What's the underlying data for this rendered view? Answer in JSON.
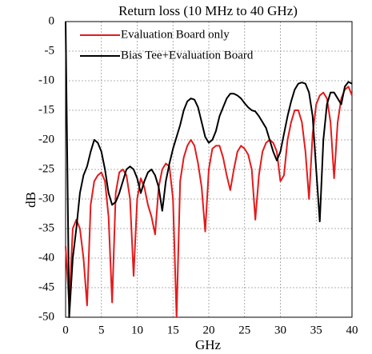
{
  "chart_data": {
    "type": "line",
    "title": "Return loss (10 MHz to 40 GHz)",
    "x_label": "GHz",
    "y_label": "dB",
    "x": [
      0,
      0.5,
      1,
      1.5,
      2,
      2.5,
      3,
      3.5,
      4,
      4.5,
      5,
      5.5,
      6,
      6.5,
      7,
      7.5,
      8,
      8.5,
      9,
      9.5,
      10,
      10.5,
      11,
      11.5,
      12,
      12.5,
      13,
      13.5,
      14,
      14.5,
      15,
      15.5,
      16,
      16.5,
      17,
      17.5,
      18,
      18.5,
      19,
      19.5,
      20,
      20.5,
      21,
      21.5,
      22,
      22.5,
      23,
      23.5,
      24,
      24.5,
      25,
      25.5,
      26,
      26.5,
      27,
      27.5,
      28,
      28.5,
      29,
      29.5,
      30,
      30.5,
      31,
      31.5,
      32,
      32.5,
      33,
      33.5,
      34,
      34.5,
      35,
      35.5,
      36,
      36.5,
      37,
      37.5,
      38,
      38.5,
      39,
      39.5,
      40
    ],
    "series": [
      {
        "name": "Evaluation Board only",
        "color": "#e41a1c",
        "values": [
          -38,
          -48,
          -35,
          -33.5,
          -35,
          -40,
          -48,
          -31,
          -27,
          -26,
          -25.5,
          -27,
          -33,
          -47.5,
          -29,
          -25.5,
          -25,
          -26,
          -30,
          -43,
          -30,
          -26.5,
          -28,
          -31,
          -33,
          -36,
          -28,
          -25,
          -24,
          -24.5,
          -30,
          -50,
          -27,
          -23,
          -21,
          -20,
          -21,
          -24,
          -28,
          -35.5,
          -25,
          -21.5,
          -21,
          -21,
          -23,
          -26,
          -28.5,
          -25,
          -22,
          -21,
          -21.5,
          -22.5,
          -25,
          -33.5,
          -26,
          -22,
          -20.5,
          -20,
          -20.5,
          -22,
          -27,
          -26,
          -20,
          -17,
          -15,
          -15,
          -17,
          -22,
          -30,
          -19,
          -14,
          -12.5,
          -12,
          -13,
          -17,
          -26.5,
          -17,
          -13,
          -11.5,
          -11,
          -12.5
        ]
      },
      {
        "name": "Bias Tee+Evaluation Board",
        "color": "#000000",
        "values": [
          0,
          -50,
          -40,
          -35,
          -29,
          -26,
          -24.5,
          -22,
          -20,
          -20.5,
          -22,
          -25,
          -29,
          -31,
          -30.5,
          -29,
          -27,
          -25,
          -24.5,
          -25,
          -26.5,
          -29,
          -27,
          -25.5,
          -25,
          -26,
          -28,
          -32,
          -27,
          -24,
          -21.5,
          -19.5,
          -17.5,
          -15,
          -13.5,
          -13,
          -13.2,
          -14.5,
          -17,
          -19.5,
          -20.5,
          -20,
          -18.5,
          -16,
          -14.5,
          -13,
          -12.2,
          -12.2,
          -12.5,
          -13,
          -13.8,
          -14.5,
          -15,
          -15.2,
          -16,
          -17,
          -18,
          -20,
          -22,
          -23.5,
          -22,
          -19,
          -16,
          -13.5,
          -11.5,
          -10.5,
          -10.3,
          -10.5,
          -12,
          -16,
          -25,
          -33.8,
          -20,
          -14,
          -12,
          -12,
          -13,
          -14,
          -11,
          -10.2,
          -10.5
        ]
      }
    ],
    "xlim": [
      0,
      40
    ],
    "xticks": [
      0,
      5,
      10,
      15,
      20,
      25,
      30,
      35,
      40
    ],
    "ylim": [
      -50,
      0
    ],
    "yticks": [
      0,
      -5,
      -10,
      -15,
      -20,
      -25,
      -30,
      -35,
      -40,
      -45,
      -50
    ],
    "grid": true,
    "legend": "upper left"
  }
}
